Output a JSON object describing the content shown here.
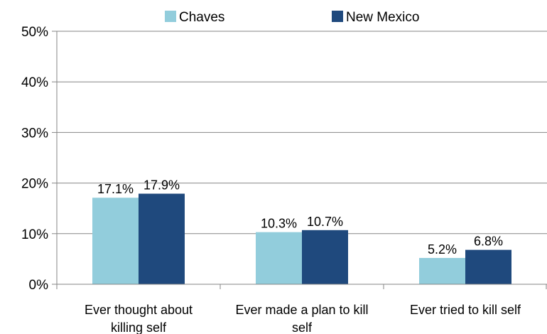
{
  "chart_data": {
    "type": "bar",
    "title": "",
    "xlabel": "",
    "ylabel": "",
    "categories": [
      [
        "Ever thought about",
        "killing self"
      ],
      [
        "Ever made a plan to kill",
        "self"
      ],
      [
        "Ever tried to kill self"
      ]
    ],
    "series": [
      {
        "name": "Chaves",
        "color": "#92cddc",
        "values": [
          17.1,
          10.3,
          5.2
        ],
        "labels": [
          "17.1%",
          "10.3%",
          "5.2%"
        ]
      },
      {
        "name": "New Mexico",
        "color": "#1f497d",
        "values": [
          17.9,
          10.7,
          6.8
        ],
        "labels": [
          "17.9%",
          "10.7%",
          "6.8%"
        ]
      }
    ],
    "ylim": [
      0,
      50
    ],
    "yticks": [
      0,
      10,
      20,
      30,
      40,
      50
    ],
    "ytick_labels": [
      "0%",
      "10%",
      "20%",
      "30%",
      "40%",
      "50%"
    ],
    "grid": true,
    "legend_position": "top"
  }
}
